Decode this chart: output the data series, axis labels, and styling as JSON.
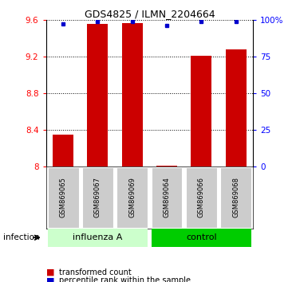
{
  "title": "GDS4825 / ILMN_2204664",
  "samples": [
    "GSM869065",
    "GSM869067",
    "GSM869069",
    "GSM869064",
    "GSM869066",
    "GSM869068"
  ],
  "transformed_counts": [
    8.35,
    9.555,
    9.56,
    8.01,
    9.21,
    9.28
  ],
  "percentile_ranks": [
    97,
    99,
    99,
    96,
    99,
    99
  ],
  "bar_base": 8.0,
  "ylim_left": [
    8.0,
    9.6
  ],
  "ylim_right": [
    0,
    100
  ],
  "yticks_left": [
    8.0,
    8.4,
    8.8,
    9.2,
    9.6
  ],
  "ytick_labels_left": [
    "8",
    "8.4",
    "8.8",
    "9.2",
    "9.6"
  ],
  "yticks_right": [
    0,
    25,
    50,
    75,
    100
  ],
  "ytick_labels_right": [
    "0",
    "25",
    "50",
    "75",
    "100%"
  ],
  "bar_color": "#cc0000",
  "dot_color": "#0000cc",
  "influenza_color": "#ccffcc",
  "control_color": "#00cc00",
  "sample_box_color": "#cccccc",
  "bar_width": 0.6,
  "legend_bar_label": "transformed count",
  "legend_dot_label": "percentile rank within the sample",
  "factor_label": "infection"
}
